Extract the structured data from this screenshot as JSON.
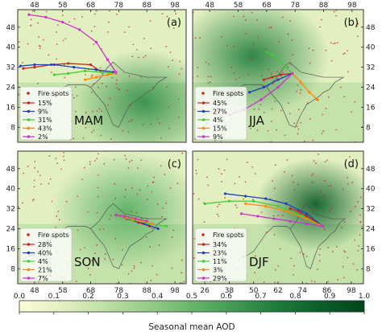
{
  "colorbar": {
    "label": "Seasonal mean AOD",
    "ticks": [
      "0.0",
      "0.1",
      "0.2",
      "0.3",
      "0.4",
      "0.5",
      "0.6",
      "0.7",
      "0.8",
      "0.9",
      "1.0"
    ],
    "range": [
      0,
      1
    ],
    "colors": [
      "#fbfbd8",
      "#e2f0c0",
      "#bedfa4",
      "#95cc86",
      "#68b56a",
      "#3f9952",
      "#1d7b3b",
      "#0a5f2b",
      "#00441b"
    ]
  },
  "chart_data": [
    {
      "type": "scatter",
      "panel": "(a)",
      "season": "MAM",
      "xticks": [
        "48",
        "58",
        "68",
        "78",
        "88",
        "98"
      ],
      "yticks": [
        "48",
        "40",
        "32",
        "24",
        "16",
        "8"
      ],
      "xlim": [
        42,
        102
      ],
      "ylim": [
        2,
        55
      ],
      "fire_spots_label": "Fire spots",
      "fire_color": "#c62828",
      "trajectories": [
        {
          "label": "15%",
          "color": "#cc2222",
          "lon": [
            72,
            68,
            60,
            54,
            48,
            44
          ],
          "lat": [
            30,
            33,
            33.5,
            33,
            32,
            31.5
          ]
        },
        {
          "label": "9%",
          "color": "#1f3fbf",
          "lon": [
            76,
            70,
            62,
            55,
            48,
            43
          ],
          "lat": [
            30,
            31,
            32,
            33,
            33,
            32.5
          ]
        },
        {
          "label": "31%",
          "color": "#44cc33",
          "lon": [
            77,
            72,
            66,
            60,
            55
          ],
          "lat": [
            29.5,
            30,
            30.5,
            29.5,
            29
          ]
        },
        {
          "label": "43%",
          "color": "#ff8800",
          "lon": [
            77,
            74,
            70,
            66
          ],
          "lat": [
            29.5,
            29,
            28,
            27
          ]
        },
        {
          "label": "2%",
          "color": "#cc33cc",
          "lon": [
            77,
            74,
            70,
            64,
            58,
            52,
            46
          ],
          "lat": [
            30,
            35,
            42,
            47,
            50,
            52,
            53
          ]
        }
      ]
    },
    {
      "type": "scatter",
      "panel": "(b)",
      "season": "JJA",
      "xticks": [
        "48",
        "58",
        "68",
        "78",
        "88",
        "98"
      ],
      "yticks": [
        "48",
        "40",
        "32",
        "24",
        "16",
        "8"
      ],
      "xlim": [
        42,
        102
      ],
      "ylim": [
        2,
        55
      ],
      "fire_spots_label": "Fire spots",
      "fire_color": "#c62828",
      "trajectories": [
        {
          "label": "45%",
          "color": "#cc2222",
          "lon": [
            77,
            73,
            70,
            67
          ],
          "lat": [
            29.5,
            29,
            28,
            27
          ]
        },
        {
          "label": "27%",
          "color": "#1f3fbf",
          "lon": [
            77,
            72,
            67,
            62
          ],
          "lat": [
            29.5,
            27,
            24,
            22
          ]
        },
        {
          "label": "4%",
          "color": "#44cc33",
          "lon": [
            77,
            73,
            70,
            68
          ],
          "lat": [
            29.5,
            34,
            37,
            38
          ]
        },
        {
          "label": "15%",
          "color": "#ff8800",
          "lon": [
            77,
            80,
            83,
            86
          ],
          "lat": [
            29.5,
            26,
            22,
            19
          ]
        },
        {
          "label": "9%",
          "color": "#cc33cc",
          "lon": [
            77,
            72,
            66,
            60,
            55
          ],
          "lat": [
            29.5,
            24,
            19,
            15,
            13
          ]
        }
      ]
    },
    {
      "type": "scatter",
      "panel": "(c)",
      "season": "SON",
      "xticks": [
        "48",
        "58",
        "68",
        "78",
        "88",
        "98"
      ],
      "yticks": [
        "48",
        "40",
        "32",
        "24",
        "16",
        "8"
      ],
      "xlim": [
        42,
        102
      ],
      "ylim": [
        2,
        55
      ],
      "fire_spots_label": "Fire spots",
      "fire_color": "#c62828",
      "trajectories": [
        {
          "label": "28%",
          "color": "#cc2222",
          "lon": [
            77,
            81,
            85,
            89
          ],
          "lat": [
            29.5,
            28,
            26.5,
            25
          ]
        },
        {
          "label": "40%",
          "color": "#1f3fbf",
          "lon": [
            77,
            82,
            87,
            92
          ],
          "lat": [
            29.5,
            28,
            26,
            24
          ]
        },
        {
          "label": "4%",
          "color": "#44cc33",
          "lon": [
            77,
            83,
            89,
            95
          ],
          "lat": [
            29.5,
            27.5,
            26,
            25
          ]
        },
        {
          "label": "21%",
          "color": "#ff8800",
          "lon": [
            77,
            81,
            86,
            90
          ],
          "lat": [
            29.5,
            28.5,
            27,
            26
          ]
        },
        {
          "label": "7%",
          "color": "#cc33cc",
          "lon": [
            77,
            80,
            84,
            88
          ],
          "lat": [
            29.5,
            29,
            28,
            27
          ]
        }
      ]
    },
    {
      "type": "scatter",
      "panel": "(d)",
      "season": "DJF",
      "xticks": [
        "26",
        "38",
        "50",
        "62",
        "74",
        "86",
        "98"
      ],
      "yticks": [
        "48",
        "40",
        "32",
        "24",
        "16",
        "8"
      ],
      "xlim": [
        20,
        104
      ],
      "ylim": [
        2,
        55
      ],
      "fire_spots_label": "Fire spots",
      "fire_color": "#c62828",
      "trajectories": [
        {
          "label": "34%",
          "color": "#cc2222",
          "lon": [
            84,
            80,
            76,
            72,
            68
          ],
          "lat": [
            25,
            27,
            29,
            31,
            32
          ]
        },
        {
          "label": "23%",
          "color": "#1f3fbf",
          "lon": [
            84,
            76,
            66,
            56,
            46,
            36
          ],
          "lat": [
            25,
            30,
            34,
            36,
            37,
            38
          ]
        },
        {
          "label": "11%",
          "color": "#44cc33",
          "lon": [
            84,
            74,
            62,
            50,
            38,
            26
          ],
          "lat": [
            25,
            29,
            33,
            35,
            35,
            34
          ]
        },
        {
          "label": "3%",
          "color": "#ff8800",
          "lon": [
            84,
            76,
            66,
            56,
            46
          ],
          "lat": [
            25,
            28,
            31,
            33,
            34
          ]
        },
        {
          "label": "29%",
          "color": "#cc33cc",
          "lon": [
            84,
            76,
            68,
            60,
            52,
            44
          ],
          "lat": [
            25,
            26,
            27,
            28,
            29,
            30
          ]
        }
      ]
    }
  ]
}
